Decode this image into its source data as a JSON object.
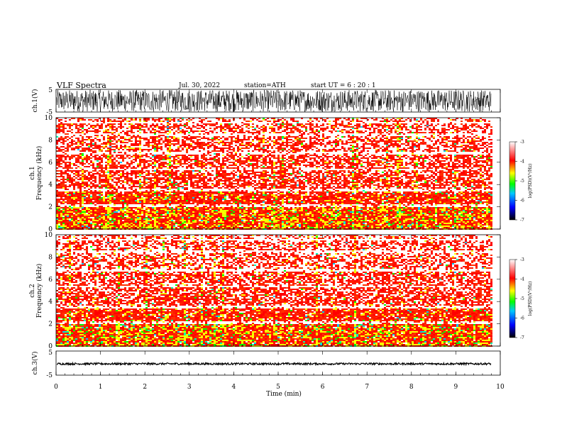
{
  "header": {
    "title": "VLF  Spectra",
    "date": "Jul.  30, 2022",
    "station": "station=ATH",
    "start": "start  UT  =    6  : 20 : 1"
  },
  "chart_data": [
    {
      "type": "line",
      "name": "ch1-waveform",
      "ylabel": "ch.1(V)",
      "ylim": [
        -5,
        5
      ],
      "ytick_labels": [
        "5",
        "-5"
      ],
      "xlim": [
        0,
        10
      ],
      "amplitude_range": [
        -4.8,
        4.8
      ],
      "color": "#000000"
    },
    {
      "type": "heatmap",
      "name": "ch1-spectrogram",
      "ylabel": [
        "ch.1",
        "Frequency  (kHz)"
      ],
      "ylim": [
        0,
        10
      ],
      "yticks": [
        0,
        2,
        4,
        6,
        8,
        10
      ],
      "xlim": [
        0,
        10
      ],
      "data_end_min": 9.8,
      "gap_band_khz": [
        [
          -0.2,
          0.05
        ]
      ],
      "colorbar": {
        "label": "log(PSD)(V²/Hz)",
        "range": [
          -7,
          -3
        ],
        "ticks": [
          "-3",
          "-4",
          "-5",
          "-6",
          "-7"
        ]
      }
    },
    {
      "type": "heatmap",
      "name": "ch2-spectrogram",
      "ylabel": [
        "ch.2",
        "Frequency  (kHz)"
      ],
      "ylim": [
        0,
        10
      ],
      "yticks": [
        0,
        2,
        4,
        6,
        8,
        10
      ],
      "xlim": [
        0,
        10
      ],
      "data_end_min": 9.8,
      "colorbar": {
        "label": "log(PSD)(V²/Hz)",
        "range": [
          -7,
          -3
        ],
        "ticks": [
          "-3",
          "-4",
          "-5",
          "-6",
          "-7"
        ]
      }
    },
    {
      "type": "line",
      "name": "ch3-waveform",
      "ylabel": "ch.3(V)",
      "ylim": [
        -5,
        5
      ],
      "ytick_labels": [
        "5",
        "-5"
      ],
      "xlim": [
        0,
        10
      ],
      "xlabel": "Time  (min)",
      "xticks": [
        0,
        1,
        2,
        3,
        4,
        5,
        6,
        7,
        8,
        9,
        10
      ],
      "level_v": -0.3,
      "amplitude_range": [
        -0.4,
        0.4
      ],
      "color": "#000000"
    }
  ],
  "colors": {
    "background": "#ffffff",
    "colormap": [
      "#000000",
      "#0000ff",
      "#00c8ff",
      "#00ff00",
      "#ffff00",
      "#ff0000",
      "#ffffff"
    ]
  }
}
